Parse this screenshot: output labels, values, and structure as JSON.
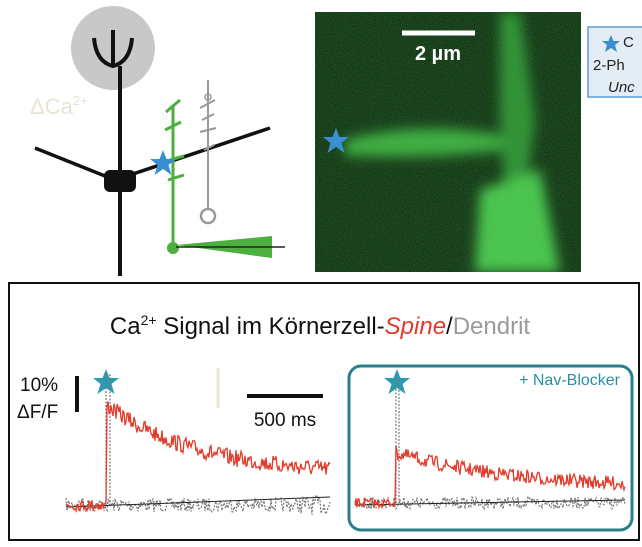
{
  "top": {
    "neuron_label": {
      "main": "ΔCa",
      "sup": "2+"
    },
    "scale_bar": "2 µm",
    "legend": [
      "C",
      "2-Ph",
      "Unc"
    ]
  },
  "bottom": {
    "title": {
      "ca": "Ca",
      "sup": "2+",
      "middle": " Signal im Körnerzell-",
      "spine": "Spine",
      "slash": "/",
      "dendrit": "Dendrit"
    },
    "y_scale": [
      "10%",
      "ΔF/F"
    ],
    "x_scale": "500 ms",
    "inset_label": "+ Nav-Blocker"
  }
}
